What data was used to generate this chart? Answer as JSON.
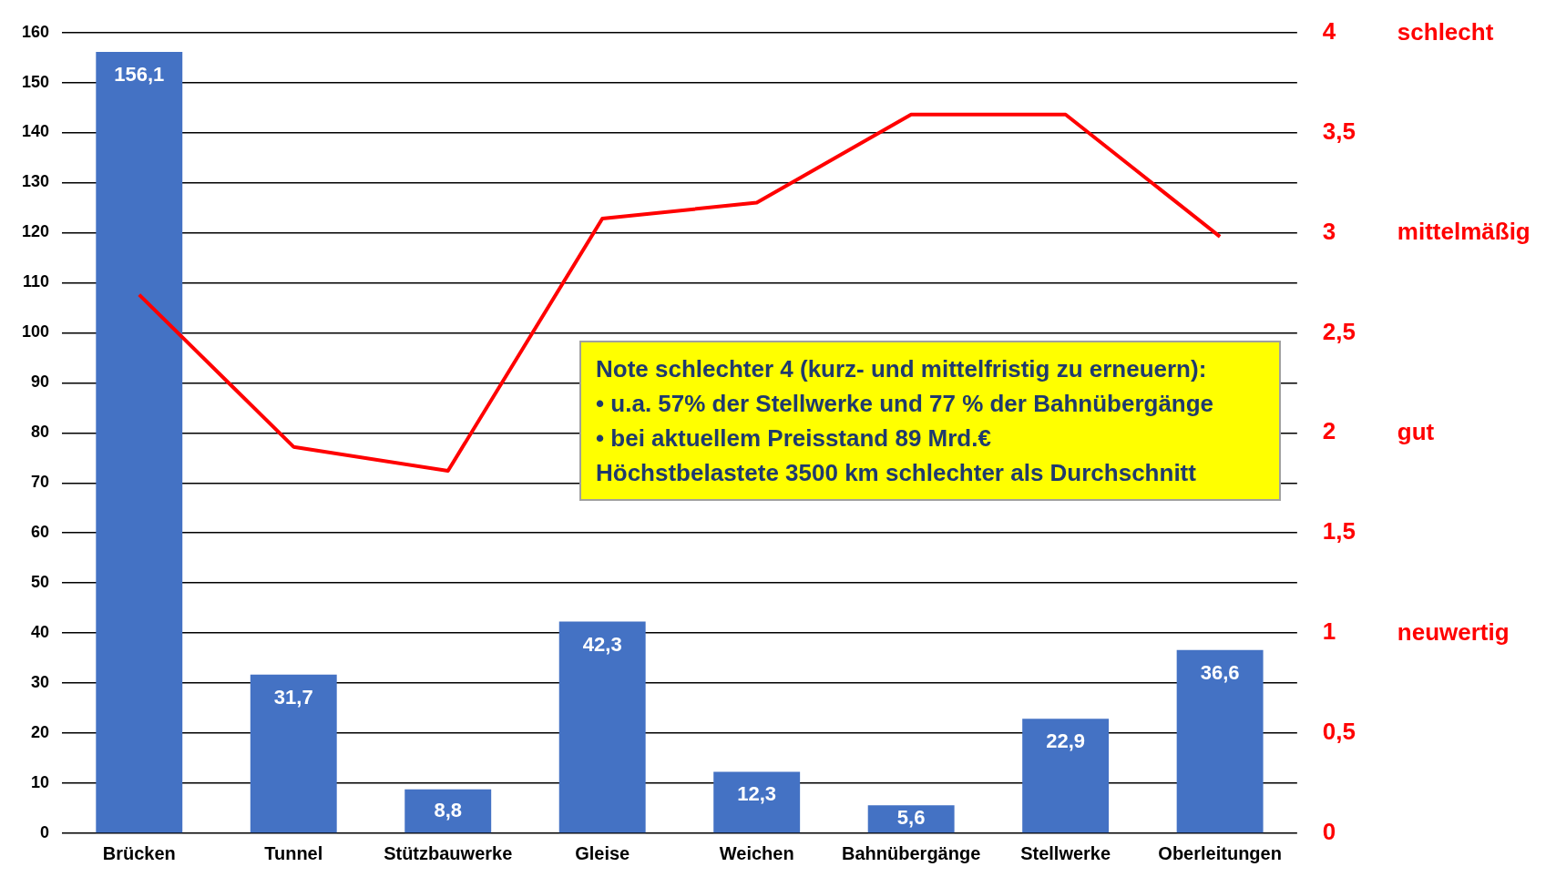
{
  "chart_data": {
    "type": "bar",
    "categories": [
      "Brücken",
      "Tunnel",
      "Stützbauwerke",
      "Gleise",
      "Weichen",
      "Bahnübergänge",
      "Stellwerke",
      "Oberleitungen"
    ],
    "series": [
      {
        "color": "#4472c4",
        "values": [
          156.1,
          31.7,
          8.8,
          42.3,
          12.3,
          5.6,
          22.9,
          36.6
        ],
        "value_labels": [
          "156,1",
          "31,7",
          "8,8",
          "42,3",
          "12,3",
          "5,6",
          "22,9",
          "36,6"
        ]
      },
      {
        "type": "line",
        "axis": "y2",
        "color": "#ff0000",
        "values": [
          2.69,
          1.93,
          1.81,
          3.07,
          3.15,
          3.59,
          3.59,
          2.98
        ]
      }
    ],
    "ylim": [
      0,
      160
    ],
    "yticks": [
      0,
      10,
      20,
      30,
      40,
      50,
      60,
      70,
      80,
      90,
      100,
      110,
      120,
      130,
      140,
      150,
      160
    ],
    "y2lim": [
      0,
      4
    ],
    "y2ticks": [
      0,
      {
        "value": 0.5,
        "label": "0,5"
      },
      1,
      {
        "value": 1.5,
        "label": "1,5"
      },
      2,
      {
        "value": 2.5,
        "label": "2,5"
      },
      3,
      {
        "value": 3.5,
        "label": "3,5"
      },
      4
    ],
    "grid": "y",
    "legend": false,
    "marker": "none",
    "line_style": "solid",
    "annotations": [
      "Note schlechter 4 (kurz- und mittelfristig zu erneuern):",
      "•   u.a. 57% der Stellwerke und 77 % der Bahnübergänge",
      "•   bei aktuellem Preisstand 89 Mrd.€",
      "Höchstbelastete 3500 km schlechter als Durchschnitt",
      "schlecht",
      "mittelmäßig",
      "gut",
      "neuwertig"
    ]
  }
}
